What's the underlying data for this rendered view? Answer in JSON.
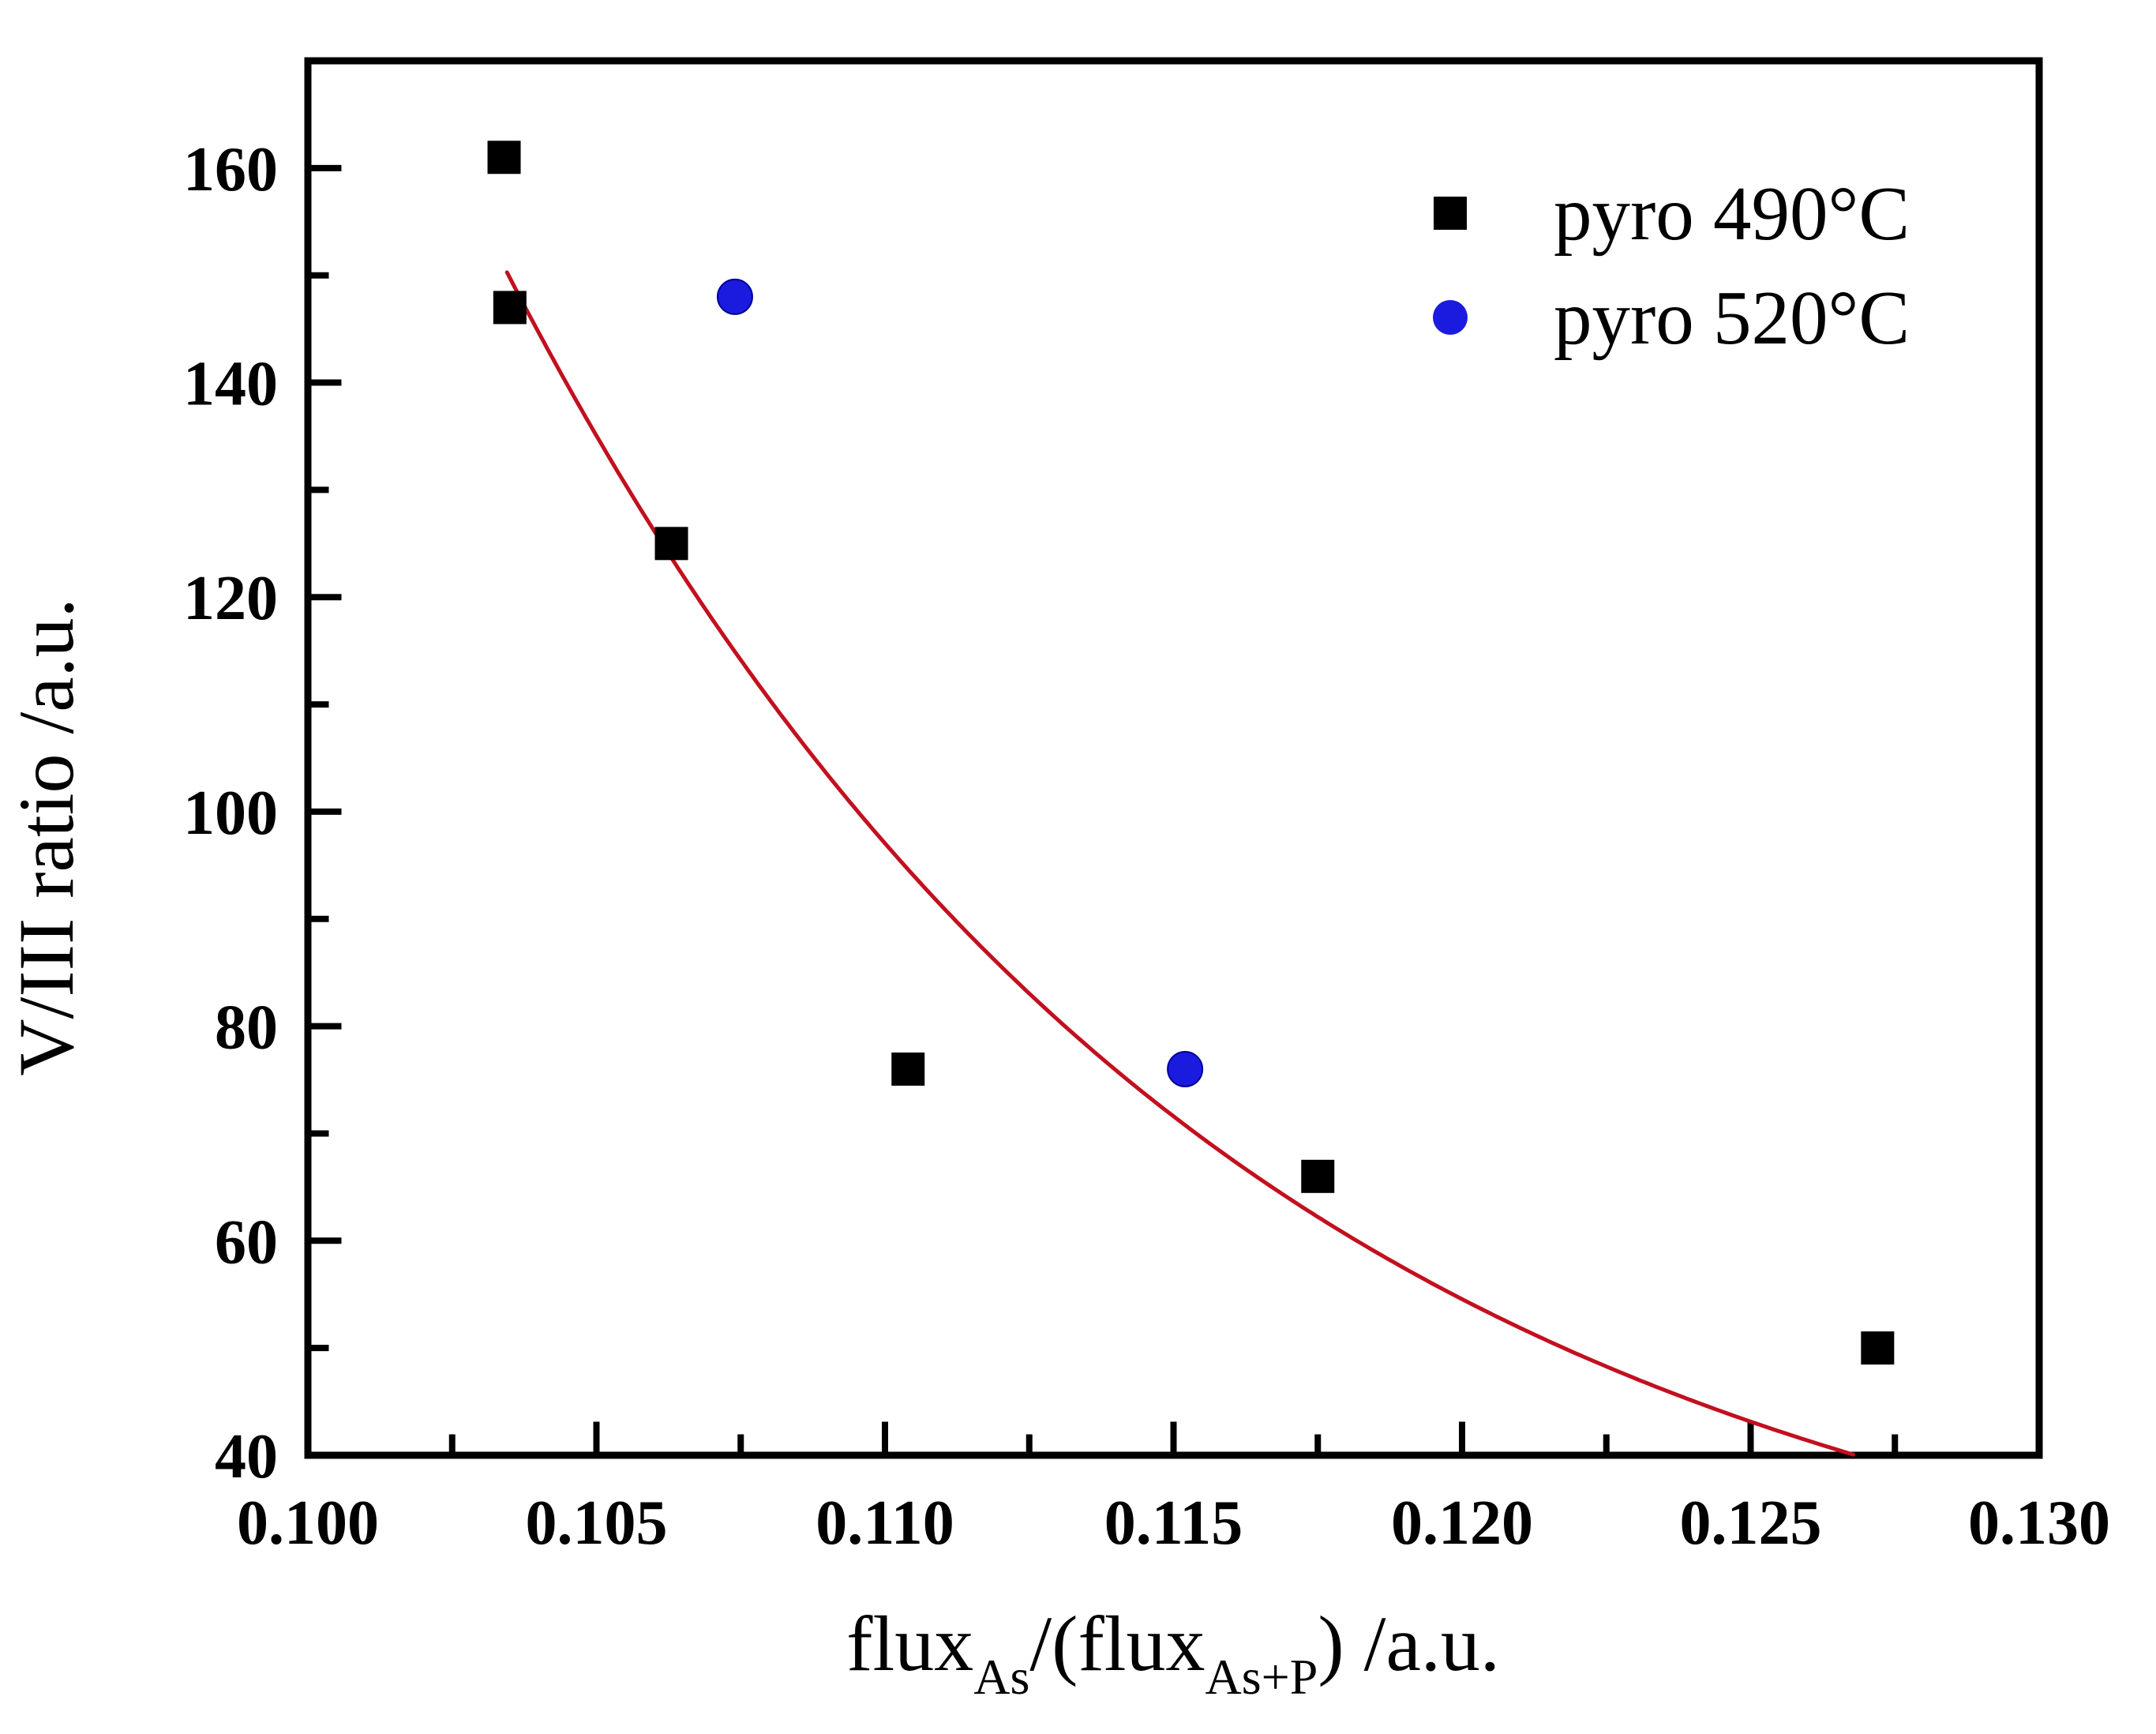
{
  "chart_data": {
    "type": "scatter",
    "title": "",
    "xlabel_plain": "fluxAs/(fluxAs+P) /a.u.",
    "xlabel_parts": [
      {
        "text": "flux",
        "sub": false
      },
      {
        "text": "As",
        "sub": true
      },
      {
        "text": "/(flux",
        "sub": false
      },
      {
        "text": "As+P",
        "sub": true
      },
      {
        "text": ") /a.u.",
        "sub": false
      }
    ],
    "ylabel": "V/III ratio /a.u.",
    "grid": false,
    "background": "#ffffff",
    "axis_color": "#000000",
    "x_axis": {
      "min": 0.1,
      "max": 0.13,
      "major_step": 0.005,
      "minor_step": 0.0025,
      "major_ticks": [
        0.1,
        0.105,
        0.11,
        0.115,
        0.12,
        0.125,
        0.13
      ],
      "tick_labels": [
        "0.100",
        "0.105",
        "0.110",
        "0.115",
        "0.120",
        "0.125",
        "0.130"
      ]
    },
    "y_axis": {
      "min": 40,
      "max": 170,
      "major_step": 20,
      "minor_step": 10,
      "major_ticks": [
        40,
        60,
        80,
        100,
        120,
        140,
        160
      ],
      "tick_labels": [
        "40",
        "60",
        "80",
        "100",
        "120",
        "140",
        "160"
      ]
    },
    "series": [
      {
        "name": "pyro 490°C",
        "marker": "square",
        "color": "#000000",
        "points": [
          {
            "x": 0.1034,
            "y": 161
          },
          {
            "x": 0.1035,
            "y": 147
          },
          {
            "x": 0.1063,
            "y": 125
          },
          {
            "x": 0.1104,
            "y": 76
          },
          {
            "x": 0.1175,
            "y": 66
          },
          {
            "x": 0.1272,
            "y": 50
          }
        ]
      },
      {
        "name": "pyro 520°C",
        "marker": "circle",
        "color": "#1b1be0",
        "edge_color": "#000099",
        "points": [
          {
            "x": 0.1074,
            "y": 148
          },
          {
            "x": 0.1152,
            "y": 76
          }
        ]
      }
    ],
    "fit_curve": {
      "name": "exponential-fit-line",
      "color": "#c2101f",
      "model": "y = y0 + A * exp(-(x - 0.100) / tau)",
      "y0": 20,
      "A": 171.8,
      "tau": 0.01247,
      "x_start": 0.10345,
      "x_end": 0.1275,
      "y_clip_min": 40
    },
    "legend_position": "top-right"
  },
  "legend": {
    "items": [
      {
        "label": "pyro 490°C",
        "marker": "square",
        "color": "#000000"
      },
      {
        "label": "pyro 520°C",
        "marker": "circle",
        "color": "#1b1be0"
      }
    ]
  }
}
